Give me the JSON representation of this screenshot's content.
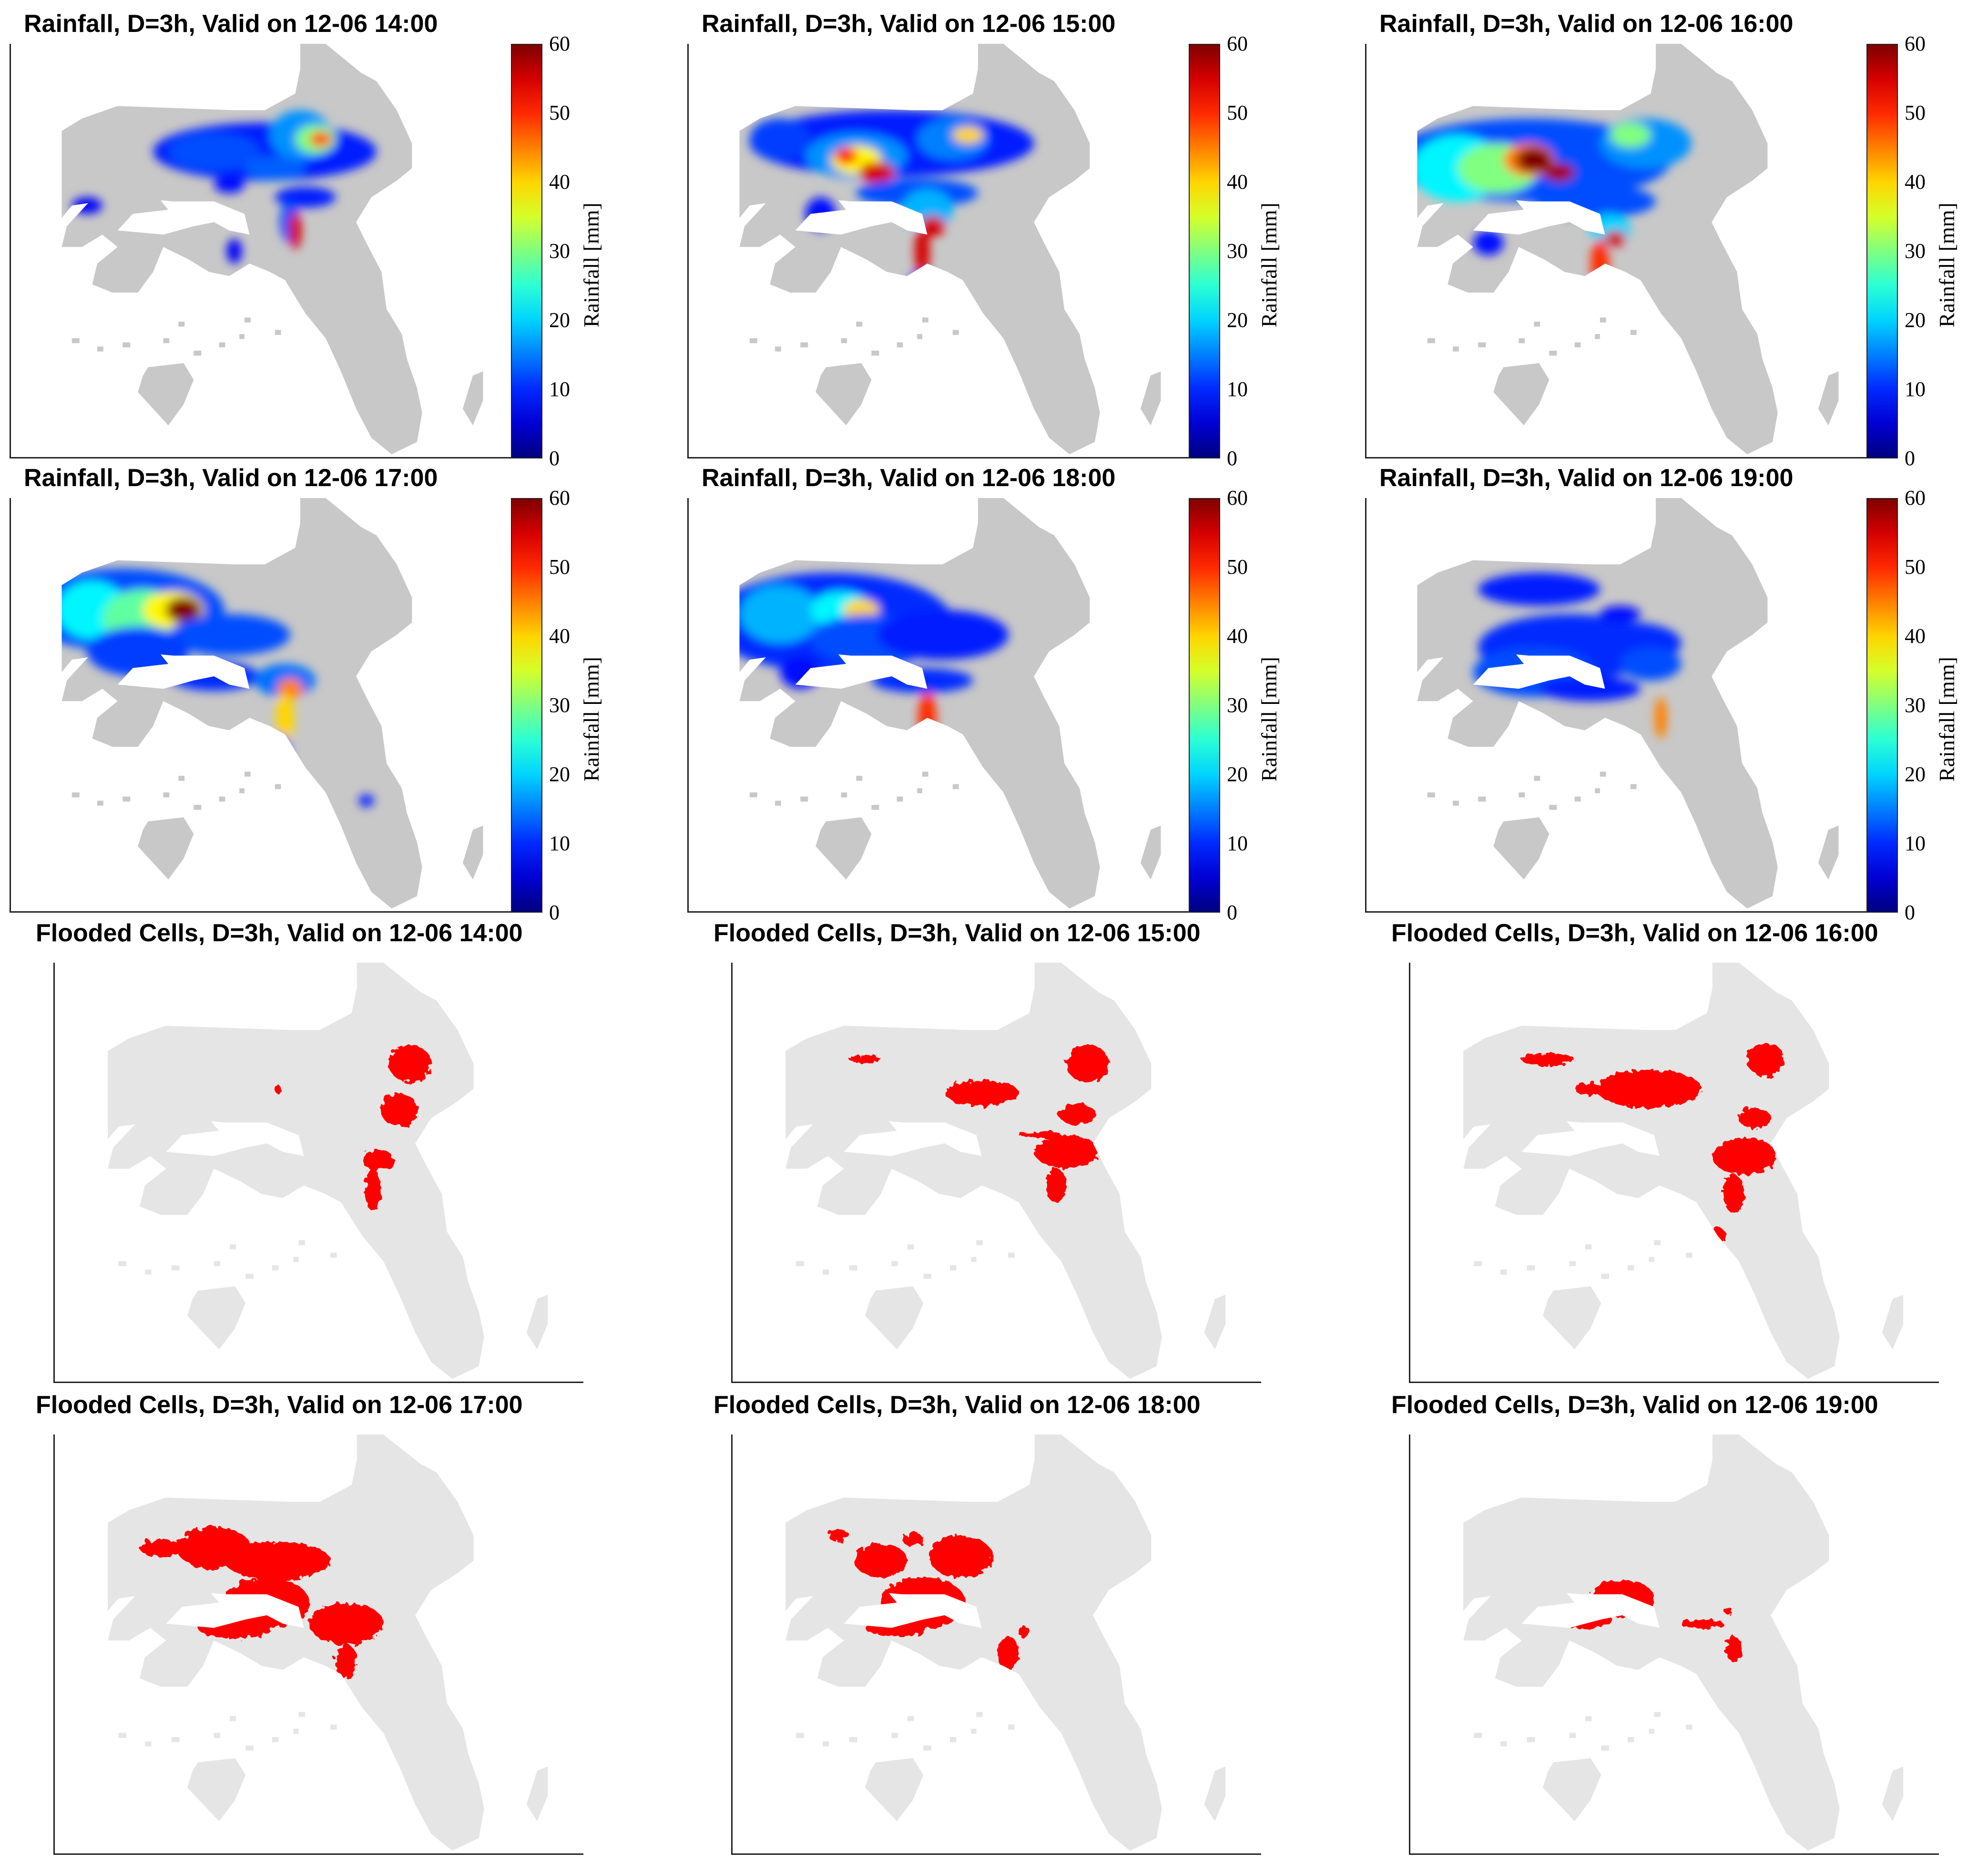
{
  "figure": {
    "colors": {
      "land_rain": "#c8c8c8",
      "land_flood": "#e5e5e5",
      "flood": "#ff0000"
    }
  },
  "chart_data": [
    {
      "type": "heatmap",
      "title": "Rainfall, D=3h, Valid on 12-06 14:00",
      "colorbar_label": "Rainfall [mm]",
      "colorbar_ticks": [
        "0",
        "10",
        "20",
        "30",
        "40",
        "50",
        "60"
      ],
      "colorbar_range": [
        0,
        60
      ],
      "colormap": "jet",
      "cells": [
        {
          "region": "north-center band",
          "value": 15
        },
        {
          "region": "north-east core",
          "value": 45
        },
        {
          "region": "south ridge",
          "value": 55
        }
      ]
    },
    {
      "type": "heatmap",
      "title": "Rainfall, D=3h, Valid on 12-06 15:00",
      "colorbar_label": "Rainfall [mm]",
      "colorbar_ticks": [
        "0",
        "10",
        "20",
        "30",
        "40",
        "50",
        "60"
      ],
      "colorbar_range": [
        0,
        60
      ],
      "colormap": "jet",
      "cells": [
        {
          "region": "north band",
          "value": 15
        },
        {
          "region": "center core",
          "value": 55
        },
        {
          "region": "south ridge",
          "value": 55
        }
      ]
    },
    {
      "type": "heatmap",
      "title": "Rainfall, D=3h, Valid on 12-06 16:00",
      "colorbar_label": "Rainfall [mm]",
      "colorbar_ticks": [
        "0",
        "10",
        "20",
        "30",
        "40",
        "50",
        "60"
      ],
      "colorbar_range": [
        0,
        60
      ],
      "colormap": "jet",
      "cells": [
        {
          "region": "north-west band",
          "value": 20
        },
        {
          "region": "center core",
          "value": 60
        },
        {
          "region": "south ridge",
          "value": 50
        }
      ]
    },
    {
      "type": "heatmap",
      "title": "Rainfall, D=3h, Valid on 12-06 17:00",
      "colorbar_label": "Rainfall [mm]",
      "colorbar_ticks": [
        "0",
        "10",
        "20",
        "30",
        "40",
        "50",
        "60"
      ],
      "colorbar_range": [
        0,
        60
      ],
      "colormap": "jet",
      "cells": [
        {
          "region": "north-west band",
          "value": 20
        },
        {
          "region": "center core",
          "value": 60
        },
        {
          "region": "south ridge",
          "value": 45
        }
      ]
    },
    {
      "type": "heatmap",
      "title": "Rainfall, D=3h, Valid on 12-06 18:00",
      "colorbar_label": "Rainfall [mm]",
      "colorbar_ticks": [
        "0",
        "10",
        "20",
        "30",
        "40",
        "50",
        "60"
      ],
      "colorbar_range": [
        0,
        60
      ],
      "colormap": "jet",
      "cells": [
        {
          "region": "north-west band",
          "value": 15
        },
        {
          "region": "center core",
          "value": 45
        },
        {
          "region": "south ridge",
          "value": 55
        }
      ]
    },
    {
      "type": "heatmap",
      "title": "Rainfall, D=3h, Valid on 12-06 19:00",
      "colorbar_label": "Rainfall [mm]",
      "colorbar_ticks": [
        "0",
        "10",
        "20",
        "30",
        "40",
        "50",
        "60"
      ],
      "colorbar_range": [
        0,
        60
      ],
      "colormap": "jet",
      "cells": [
        {
          "region": "west-center band",
          "value": 10
        },
        {
          "region": "south ridge",
          "value": 50
        }
      ]
    },
    {
      "type": "heatmap",
      "title": "Flooded Cells, D=3h, Valid on 12-06 14:00",
      "legend": [],
      "cells": [
        {
          "region": "north-east",
          "value": 1
        },
        {
          "region": "center-east",
          "value": 1
        },
        {
          "region": "south",
          "value": 1
        }
      ]
    },
    {
      "type": "heatmap",
      "title": "Flooded Cells, D=3h, Valid on 12-06 15:00",
      "legend": [],
      "cells": [
        {
          "region": "north-east",
          "value": 1
        },
        {
          "region": "center",
          "value": 1
        },
        {
          "region": "center-east",
          "value": 1
        }
      ]
    },
    {
      "type": "heatmap",
      "title": "Flooded Cells, D=3h, Valid on 12-06 16:00",
      "legend": [],
      "cells": [
        {
          "region": "north-west",
          "value": 1
        },
        {
          "region": "center",
          "value": 1
        },
        {
          "region": "center-east",
          "value": 1
        },
        {
          "region": "south",
          "value": 1
        }
      ]
    },
    {
      "type": "heatmap",
      "title": "Flooded Cells, D=3h, Valid on 12-06 17:00",
      "legend": [],
      "cells": [
        {
          "region": "north-west",
          "value": 1
        },
        {
          "region": "center",
          "value": 1
        },
        {
          "region": "center-east",
          "value": 1
        },
        {
          "region": "south",
          "value": 1
        }
      ]
    },
    {
      "type": "heatmap",
      "title": "Flooded Cells, D=3h, Valid on 12-06 18:00",
      "legend": [],
      "cells": [
        {
          "region": "north-west",
          "value": 1
        },
        {
          "region": "center",
          "value": 1
        },
        {
          "region": "south",
          "value": 1
        }
      ]
    },
    {
      "type": "heatmap",
      "title": "Flooded Cells, D=3h, Valid on 12-06 19:00",
      "legend": [],
      "cells": [
        {
          "region": "center",
          "value": 1
        },
        {
          "region": "south-east",
          "value": 1
        }
      ]
    }
  ]
}
